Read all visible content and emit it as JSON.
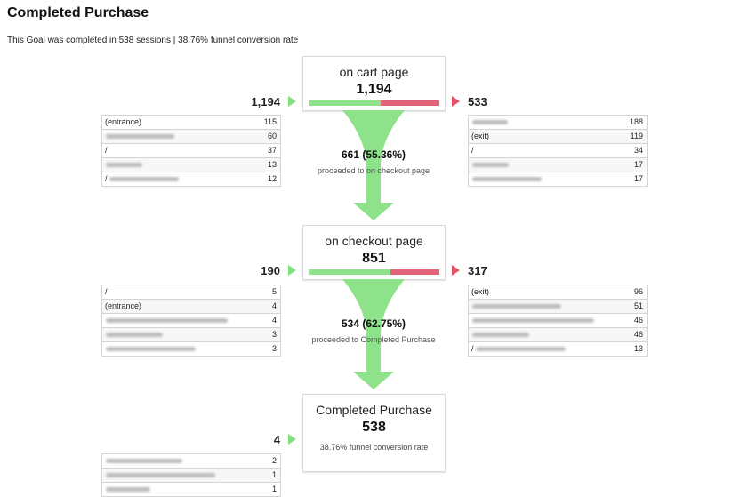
{
  "header": {
    "title": "Completed Purchase",
    "subtitle": "This Goal was completed in 538 sessions | 38.76% funnel conversion rate"
  },
  "colors": {
    "green": "#8ee28a",
    "red": "#e06377"
  },
  "stages": [
    {
      "name": "on cart page",
      "count": "1,194",
      "proceed_fraction": 0.5536,
      "entrances": "1,194",
      "exits": "533",
      "sources": [
        {
          "label": "(entrance)",
          "value": "115",
          "blurred": false
        },
        {
          "label": "",
          "value": "60",
          "blurred": true
        },
        {
          "label": "/",
          "value": "37",
          "blurred": false
        },
        {
          "label": "",
          "value": "13",
          "blurred": true
        },
        {
          "label": "/",
          "value": "12",
          "blurred": true
        }
      ],
      "destinations": [
        {
          "label": "",
          "value": "188",
          "blurred": true
        },
        {
          "label": "(exit)",
          "value": "119",
          "blurred": false
        },
        {
          "label": "/",
          "value": "34",
          "blurred": false
        },
        {
          "label": "",
          "value": "17",
          "blurred": true
        },
        {
          "label": "",
          "value": "17",
          "blurred": true
        }
      ],
      "flow": {
        "value": "661 (55.36%)",
        "label": "proceeded to on checkout page"
      }
    },
    {
      "name": "on checkout page",
      "count": "851",
      "proceed_fraction": 0.6275,
      "entrances": "190",
      "exits": "317",
      "sources": [
        {
          "label": "/",
          "value": "5",
          "blurred": false
        },
        {
          "label": "(entrance)",
          "value": "4",
          "blurred": false
        },
        {
          "label": "",
          "value": "4",
          "blurred": true
        },
        {
          "label": "",
          "value": "3",
          "blurred": true
        },
        {
          "label": "",
          "value": "3",
          "blurred": true
        }
      ],
      "destinations": [
        {
          "label": "(exit)",
          "value": "96",
          "blurred": false
        },
        {
          "label": "",
          "value": "51",
          "blurred": true
        },
        {
          "label": "",
          "value": "46",
          "blurred": true
        },
        {
          "label": "",
          "value": "46",
          "blurred": true
        },
        {
          "label": "/",
          "value": "13",
          "blurred": true
        }
      ],
      "flow": {
        "value": "534 (62.75%)",
        "label": "proceeded to Completed Purchase"
      }
    },
    {
      "name": "Completed Purchase",
      "count": "538",
      "note": "38.76% funnel conversion rate",
      "entrances": "4",
      "sources": [
        {
          "label": "",
          "value": "2",
          "blurred": true
        },
        {
          "label": "",
          "value": "1",
          "blurred": true
        },
        {
          "label": "",
          "value": "1",
          "blurred": true
        }
      ]
    }
  ]
}
